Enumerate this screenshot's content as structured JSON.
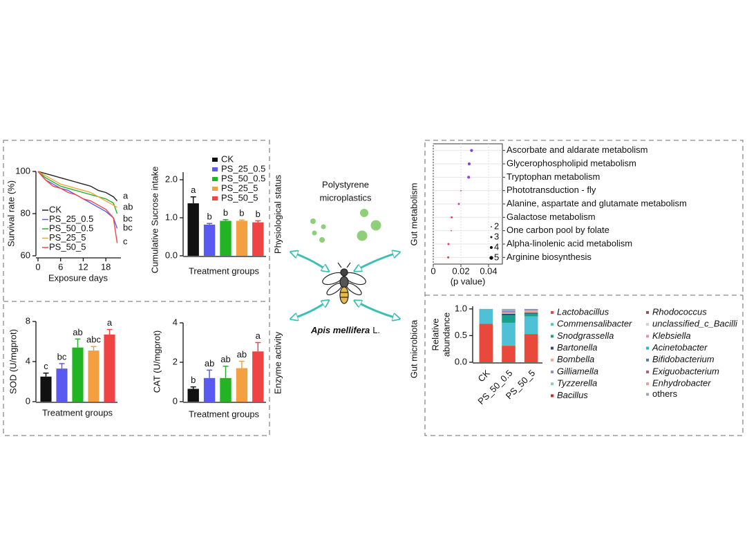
{
  "chart_data": [
    {
      "type": "line",
      "ylabel": "Survival rate (%)",
      "xlabel": "Exposure days",
      "x": [
        0,
        2,
        4,
        6,
        8,
        10,
        12,
        14,
        16,
        18,
        20,
        21
      ],
      "xlim": [
        0,
        22
      ],
      "xticks": [
        0,
        6,
        12,
        18
      ],
      "ylim": [
        60,
        100
      ],
      "yticks": [
        60,
        80,
        100
      ],
      "series": [
        {
          "name": "CK",
          "color": "#222222",
          "values": [
            100,
            99,
            98,
            97,
            96,
            95,
            94,
            93,
            91,
            90,
            88,
            86
          ]
        },
        {
          "name": "PS_25_0.5",
          "color": "#5a5af0",
          "values": [
            100,
            96,
            94,
            92,
            91,
            89,
            87,
            85,
            83,
            81,
            78,
            73
          ]
        },
        {
          "name": "PS_50_0.5",
          "color": "#22b422",
          "values": [
            100,
            97,
            95,
            93,
            92,
            91,
            90,
            89,
            88,
            87,
            85,
            80
          ]
        },
        {
          "name": "PS_25_5",
          "color": "#f5a040",
          "values": [
            100,
            98,
            96,
            94,
            93,
            92,
            91,
            90,
            88,
            86,
            84,
            83
          ]
        },
        {
          "name": "PS_50_5",
          "color": "#f04444",
          "values": [
            100,
            96,
            93,
            92,
            90,
            89,
            87,
            86,
            84,
            82,
            78,
            66
          ]
        }
      ],
      "significance": [
        "a",
        "ab",
        "bc",
        "bc",
        "c"
      ]
    },
    {
      "type": "bar",
      "ylabel": "Cumulative Sucrose intake",
      "xlabel": "Treatment groups",
      "categories": [
        "CK",
        "PS_25_0.5",
        "PS_50_0.5",
        "PS_25_5",
        "PS_50_5"
      ],
      "colors": [
        "#111111",
        "#5a5af0",
        "#22b422",
        "#f5a040",
        "#f04444"
      ],
      "values": [
        1.38,
        0.82,
        0.92,
        0.92,
        0.88
      ],
      "errors": [
        0.17,
        0.03,
        0.03,
        0.02,
        0.04
      ],
      "significance": [
        "a",
        "b",
        "b",
        "b",
        "b"
      ],
      "ylim": [
        0,
        2.2
      ],
      "yticks": [
        {
          "value": 0,
          "label": "0.0"
        },
        {
          "value": 1,
          "label": "1.0"
        },
        {
          "value": 2,
          "label": "2.0"
        }
      ],
      "legend": true
    },
    {
      "type": "bar",
      "ylabel": "SOD (U/mgprot)",
      "xlabel": "Treatment groups",
      "categories": [
        null,
        null,
        null,
        null,
        null
      ],
      "colors": [
        "#111111",
        "#5a5af0",
        "#22b422",
        "#f5a040",
        "#f04444"
      ],
      "values": [
        2.5,
        3.3,
        5.4,
        5.1,
        6.7
      ],
      "errors": [
        0.35,
        0.5,
        0.85,
        0.4,
        0.5
      ],
      "significance": [
        "c",
        "bc",
        "ab",
        "abc",
        "a"
      ],
      "ylim": [
        0,
        8
      ],
      "yticks": [
        0,
        4,
        8
      ],
      "legend": false
    },
    {
      "type": "bar",
      "ylabel": "CAT (U/mgprot)",
      "xlabel": "Treatment groups",
      "categories": [
        null,
        null,
        null,
        null,
        null
      ],
      "colors": [
        "#111111",
        "#5a5af0",
        "#22b422",
        "#f5a040",
        "#f04444"
      ],
      "values": [
        0.65,
        1.2,
        1.2,
        1.7,
        2.55
      ],
      "errors": [
        0.1,
        0.4,
        0.6,
        0.35,
        0.45
      ],
      "significance": [
        "b",
        "ab",
        "ab",
        "ab",
        "a"
      ],
      "ylim": [
        0,
        4
      ],
      "yticks": [
        0,
        2,
        4
      ],
      "legend": false
    },
    {
      "type": "bubble",
      "xlabel": "(p value)",
      "categories": [
        "Ascorbate and aldarate metabolism",
        "Glycerophospholipid metabolism",
        "Tryptophan metabolism",
        "Phototransduction - fly",
        "Alanine, aspartate and glutamate metabolism",
        "Galactose metabolism",
        "One carbon pool by folate",
        "Alpha-linolenic acid metabolism",
        "Arginine biosynthesis"
      ],
      "x": [
        0.0277,
        0.026,
        0.0256,
        0.02,
        0.0185,
        0.0133,
        0.013,
        0.011,
        0.0108
      ],
      "sizes": [
        4,
        4,
        4,
        2,
        3,
        3,
        2,
        3,
        3
      ],
      "colors": [
        "#7a3ff0",
        "#8a3fe6",
        "#9a3edc",
        "#b83ec0",
        "#c83eaa",
        "#d83c8c",
        "#e03c70",
        "#ea3a54",
        "#f03a3a"
      ],
      "xlim": [
        0,
        0.05
      ],
      "xticks": [
        0,
        0.02,
        0.04
      ],
      "size_legend": [
        2,
        3,
        4,
        5
      ],
      "grid": true
    },
    {
      "type": "stacked_bar",
      "ylabel": [
        "Relative",
        "abundance"
      ],
      "categories": [
        "CK",
        "PS_50_0.5",
        "PS_50_5"
      ],
      "ylim": [
        0,
        1.05
      ],
      "yticks": [
        {
          "value": 0,
          "label": "0.0"
        },
        {
          "value": 0.5,
          "label": "0.5"
        },
        {
          "value": 1,
          "label": "1.0"
        }
      ],
      "series": [
        {
          "name": "Lactobacillus",
          "color": "#e8493a",
          "values": [
            0.72,
            0.31,
            0.53
          ]
        },
        {
          "name": "Commensalibacter",
          "color": "#4fc1d6",
          "values": [
            0.28,
            0.43,
            0.33
          ]
        },
        {
          "name": "Snodgrassella",
          "color": "#18a08a",
          "values": [
            0,
            0.14,
            0.05
          ]
        },
        {
          "name": "Bartonella",
          "color": "#2f4a7a",
          "values": [
            0,
            0.03,
            0.02
          ]
        },
        {
          "name": "Bombella",
          "color": "#f2a58a",
          "values": [
            0,
            0.02,
            0.04
          ]
        },
        {
          "name": "Gilliamella",
          "color": "#8f8fc8",
          "values": [
            0,
            0.03,
            0.03
          ]
        },
        {
          "name": "Tyzzerella",
          "color": "#7dd3c0",
          "values": [
            0,
            0,
            0
          ]
        },
        {
          "name": "Bacillus",
          "color": "#d62728",
          "values": [
            0,
            0,
            0
          ]
        },
        {
          "name": "Rhodococcus",
          "color": "#8c564b",
          "values": [
            0,
            0,
            0
          ]
        },
        {
          "name": "unclassified_c_Bacilli",
          "color": "#d0d0d0",
          "values": [
            0,
            0,
            0
          ]
        },
        {
          "name": "Klebsiella",
          "color": "#e7969c",
          "values": [
            0,
            0,
            0
          ]
        },
        {
          "name": "Acinetobacter",
          "color": "#17becf",
          "values": [
            0,
            0,
            0
          ]
        },
        {
          "name": "Bifidobacterium",
          "color": "#4a7aa8",
          "values": [
            0,
            0,
            0
          ]
        },
        {
          "name": "Exiguobacterium",
          "color": "#b05a8c",
          "values": [
            0,
            0,
            0
          ]
        },
        {
          "name": "Enhydrobacter",
          "color": "#e0a0a0",
          "values": [
            0,
            0,
            0
          ]
        },
        {
          "name": "others",
          "color": "#9aa8bb",
          "values": [
            0,
            0.04,
            0
          ]
        }
      ]
    }
  ],
  "labels": {
    "physiological_status": "Physiological status",
    "enzyme_activity": "Enzyme activity",
    "gut_metabolism": "Gut metabolism",
    "gut_microbiota": "Gut microbiota",
    "stressor": [
      "Polystyrene",
      "microplastics"
    ],
    "species": "Apis mellifera",
    "species_author": "L."
  }
}
